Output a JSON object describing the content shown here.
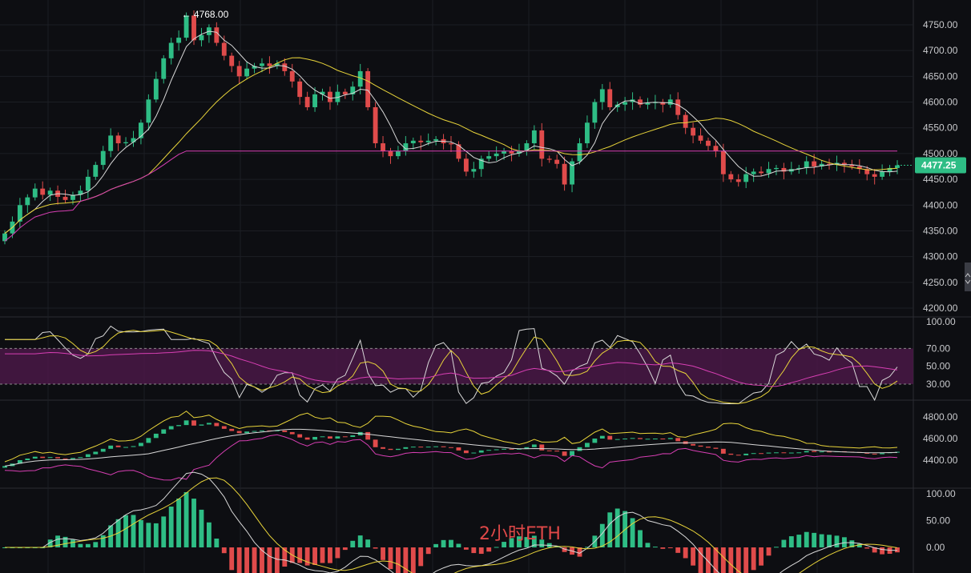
{
  "watermark": "2小时ETH",
  "colors": {
    "up": "#2ebd85",
    "down": "#e04b4b",
    "ma_fast": "#d8d8d8",
    "ma_mid": "#e8d43a",
    "ma_slow": "#d83fb4",
    "rsi_band": "#4a1846",
    "grid": "#1c1e24",
    "background": "#0d0e12",
    "price_tag": "#2ebd85",
    "watermark": "#e04848"
  },
  "chart_data": [
    {
      "type": "candlestick",
      "panel": "price",
      "ylim": [
        4190,
        4800
      ],
      "y_ticks": [
        "4800.00",
        "4750.00",
        "4700.00",
        "4650.00",
        "4600.00",
        "4550.00",
        "4500.00",
        "4450.00",
        "4400.00",
        "4350.00",
        "4300.00",
        "4250.00",
        "4200.00"
      ],
      "last_price": "4477.25",
      "max_label": "4768.00",
      "close": [
        4345,
        4368,
        4400,
        4415,
        4432,
        4420,
        4428,
        4416,
        4410,
        4420,
        4428,
        4455,
        4478,
        4505,
        4535,
        4520,
        4522,
        4530,
        4560,
        4605,
        4645,
        4685,
        4715,
        4725,
        4768,
        4720,
        4730,
        4745,
        4715,
        4690,
        4670,
        4650,
        4665,
        4670,
        4675,
        4670,
        4675,
        4660,
        4640,
        4610,
        4590,
        4615,
        4620,
        4600,
        4620,
        4615,
        4630,
        4660,
        4590,
        4520,
        4505,
        4495,
        4505,
        4520,
        4525,
        4522,
        4525,
        4528,
        4520,
        4518,
        4490,
        4465,
        4470,
        4490,
        4495,
        4500,
        4505,
        4500,
        4505,
        4520,
        4545,
        4490,
        4488,
        4480,
        4440,
        4485,
        4520,
        4560,
        4600,
        4625,
        4590,
        4595,
        4600,
        4605,
        4595,
        4598,
        4600,
        4595,
        4605,
        4575,
        4550,
        4535,
        4525,
        4515,
        4505,
        4460,
        4450,
        4445,
        4460,
        4465,
        4462,
        4470,
        4472,
        4465,
        4470,
        4472,
        4485,
        4475,
        4480,
        4478,
        4482,
        4478,
        4475,
        4470,
        4460,
        4455,
        4465,
        4472,
        4477.25
      ],
      "open": [
        4330,
        4345,
        4368,
        4400,
        4415,
        4432,
        4420,
        4428,
        4416,
        4410,
        4420,
        4428,
        4455,
        4478,
        4505,
        4535,
        4520,
        4522,
        4530,
        4560,
        4605,
        4645,
        4685,
        4715,
        4725,
        4768,
        4720,
        4730,
        4745,
        4715,
        4690,
        4670,
        4650,
        4665,
        4670,
        4675,
        4670,
        4675,
        4660,
        4640,
        4610,
        4590,
        4615,
        4620,
        4600,
        4620,
        4615,
        4630,
        4660,
        4590,
        4520,
        4505,
        4495,
        4505,
        4520,
        4525,
        4522,
        4525,
        4528,
        4520,
        4518,
        4490,
        4465,
        4470,
        4490,
        4495,
        4500,
        4505,
        4500,
        4505,
        4520,
        4545,
        4490,
        4488,
        4480,
        4440,
        4485,
        4520,
        4560,
        4600,
        4625,
        4590,
        4595,
        4600,
        4605,
        4595,
        4598,
        4600,
        4595,
        4605,
        4575,
        4550,
        4535,
        4525,
        4515,
        4505,
        4460,
        4450,
        4445,
        4460,
        4465,
        4462,
        4470,
        4472,
        4465,
        4470,
        4472,
        4485,
        4475,
        4480,
        4478,
        4482,
        4478,
        4475,
        4470,
        4460,
        4455,
        4465,
        4472
      ],
      "moving_averages": [
        "MA fast",
        "MA mid",
        "MA slow"
      ]
    },
    {
      "type": "line",
      "panel": "rsi",
      "ylim": [
        0,
        100
      ],
      "y_ticks": [
        "100.00",
        "70.00",
        "50.00",
        "30.00"
      ],
      "band": [
        30,
        70
      ],
      "series_count": 3
    },
    {
      "type": "candlestick",
      "panel": "bollinger",
      "ylim": [
        4300,
        4900
      ],
      "y_ticks": [
        "4800.00",
        "4600.00",
        "4400.00"
      ]
    },
    {
      "type": "bar",
      "panel": "oscillator",
      "ylim": [
        -40,
        110
      ],
      "y_ticks": [
        "100.00",
        "50.00",
        "0.00"
      ]
    }
  ]
}
